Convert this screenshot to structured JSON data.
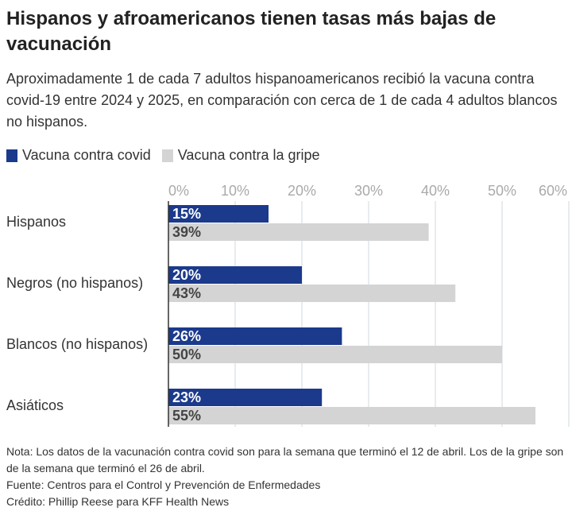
{
  "chart_data": {
    "type": "bar",
    "orientation": "horizontal",
    "title": "Hispanos y afroamericanos tienen tasas más bajas de vacunación",
    "subtitle": "Aproximadamente 1 de cada 7 adultos hispanoamericanos recibió la vacuna contra covid-19 entre 2024 y 2025, en comparación con cerca de 1 de cada 4 adultos blancos no hispanos.",
    "categories": [
      "Hispanos",
      "Negros (no hispanos)",
      "Blancos (no hispanos)",
      "Asiáticos"
    ],
    "series": [
      {
        "name": "Vacuna contra covid",
        "color": "#1b3a8c",
        "values": [
          15,
          20,
          26,
          23
        ],
        "value_labels": [
          "15%",
          "20%",
          "26%",
          "23%"
        ]
      },
      {
        "name": "Vacuna contra la gripe",
        "color": "#d4d4d4",
        "values": [
          39,
          43,
          50,
          55
        ],
        "value_labels": [
          "39%",
          "43%",
          "50%",
          "55%"
        ]
      }
    ],
    "xlim": [
      0,
      60
    ],
    "xticks": [
      {
        "value": 0,
        "label": "0%"
      },
      {
        "value": 10,
        "label": "10%"
      },
      {
        "value": 20,
        "label": "20%"
      },
      {
        "value": 30,
        "label": "30%"
      },
      {
        "value": 40,
        "label": "40%"
      },
      {
        "value": 50,
        "label": "50%"
      },
      {
        "value": 60,
        "label": "60%"
      }
    ],
    "grid": true,
    "notes": [
      "Nota: Los datos de la vacunación contra covid son para la semana que terminó el 12 de abril. Los de la gripe son de la semana que terminó el 26 de abril.",
      "Fuente: Centros para el Control y Prevención de Enfermedades",
      "Crédito: Phillip Reese para KFF Health News"
    ]
  }
}
